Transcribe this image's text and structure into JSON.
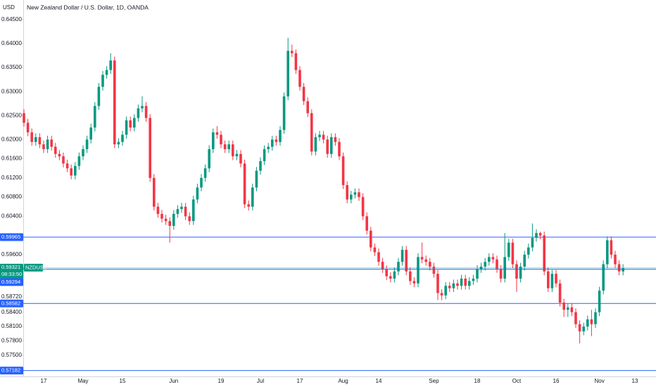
{
  "chart_data": {
    "type": "candlestick",
    "title": "New Zealand Dollar / U.S. Dollar, 1D, OANDA",
    "currency": "USD",
    "up_color": "#089981",
    "down_color": "#f23645",
    "ylim": [
      0.5706,
      0.6491
    ],
    "yticks": [
      {
        "value": 0.645,
        "label": "0.64500"
      },
      {
        "value": 0.64,
        "label": "0.64000"
      },
      {
        "value": 0.635,
        "label": "0.63500"
      },
      {
        "value": 0.63,
        "label": "0.63000"
      },
      {
        "value": 0.625,
        "label": "0.62500"
      },
      {
        "value": 0.62,
        "label": "0.62000"
      },
      {
        "value": 0.616,
        "label": "0.61600"
      },
      {
        "value": 0.612,
        "label": "0.61200"
      },
      {
        "value": 0.608,
        "label": "0.60800"
      },
      {
        "value": 0.604,
        "label": "0.60400"
      },
      {
        "value": 0.596,
        "label": "0.59600"
      },
      {
        "value": 0.5872,
        "label": "0.58720"
      },
      {
        "value": 0.584,
        "label": "0.58400"
      },
      {
        "value": 0.581,
        "label": "0.58100"
      },
      {
        "value": 0.578,
        "label": "0.57800"
      },
      {
        "value": 0.575,
        "label": "0.57500"
      }
    ],
    "categories": [
      null,
      null,
      null,
      null,
      null,
      "17",
      null,
      null,
      null,
      null,
      null,
      null,
      null,
      null,
      null,
      "May",
      null,
      null,
      null,
      null,
      null,
      null,
      null,
      null,
      null,
      "15",
      null,
      null,
      null,
      null,
      null,
      null,
      null,
      null,
      null,
      null,
      null,
      null,
      "Jun",
      null,
      null,
      null,
      null,
      null,
      null,
      null,
      null,
      null,
      null,
      null,
      "19",
      null,
      null,
      null,
      null,
      null,
      null,
      null,
      null,
      null,
      "Jul",
      null,
      null,
      null,
      null,
      null,
      null,
      null,
      null,
      null,
      "17",
      null,
      null,
      null,
      null,
      null,
      null,
      null,
      null,
      null,
      null,
      "Aug",
      null,
      null,
      null,
      null,
      null,
      null,
      null,
      null,
      "14",
      null,
      null,
      null,
      null,
      null,
      null,
      null,
      null,
      null,
      null,
      null,
      null,
      null,
      "Sep",
      null,
      null,
      null,
      null,
      null,
      null,
      null,
      null,
      null,
      null,
      "18",
      null,
      null,
      null,
      null,
      null,
      null,
      null,
      null,
      null,
      "Oct",
      null,
      null,
      null,
      null,
      null,
      null,
      null,
      null,
      null,
      "16",
      null,
      null,
      null,
      null,
      null,
      null,
      null,
      null,
      null,
      null,
      "Nov",
      null,
      null,
      null,
      null,
      null,
      null,
      null,
      null,
      "13"
    ],
    "open": [
      0.6255,
      0.6235,
      0.6215,
      0.6195,
      0.6205,
      0.619,
      0.618,
      0.62,
      0.6185,
      0.617,
      0.6165,
      0.615,
      0.614,
      0.6125,
      0.6145,
      0.6165,
      0.618,
      0.62,
      0.6225,
      0.627,
      0.631,
      0.6335,
      0.6345,
      0.6365,
      0.619,
      0.6195,
      0.621,
      0.624,
      0.6225,
      0.6245,
      0.6265,
      0.627,
      0.6245,
      0.612,
      0.606,
      0.6045,
      0.6035,
      0.603,
      0.602,
      0.6045,
      0.6055,
      0.606,
      0.604,
      0.603,
      0.6075,
      0.61,
      0.612,
      0.614,
      0.618,
      0.6215,
      0.621,
      0.619,
      0.618,
      0.619,
      0.6165,
      0.617,
      0.615,
      0.6065,
      0.606,
      0.61,
      0.6135,
      0.6155,
      0.618,
      0.6185,
      0.62,
      0.6195,
      0.622,
      0.629,
      0.6385,
      0.638,
      0.6345,
      0.631,
      0.628,
      0.6255,
      0.6175,
      0.6205,
      0.621,
      0.62,
      0.617,
      0.6205,
      0.6195,
      0.6165,
      0.6105,
      0.6075,
      0.6085,
      0.609,
      0.608,
      0.604,
      0.601,
      0.5975,
      0.5965,
      0.5945,
      0.593,
      0.5915,
      0.591,
      0.5925,
      0.5945,
      0.597,
      0.5925,
      0.5905,
      0.59,
      0.5955,
      0.595,
      0.5945,
      0.5935,
      0.592,
      0.588,
      0.5875,
      0.5895,
      0.589,
      0.59,
      0.5895,
      0.591,
      0.5895,
      0.5905,
      0.591,
      0.593,
      0.5935,
      0.5945,
      0.5955,
      0.595,
      0.593,
      0.591,
      0.5955,
      0.5985,
      0.594,
      0.591,
      0.5935,
      0.596,
      0.5975,
      0.5995,
      0.6005,
      0.6,
      0.5925,
      0.589,
      0.592,
      0.59,
      0.586,
      0.5845,
      0.585,
      0.584,
      0.5815,
      0.58,
      0.581,
      0.5825,
      0.5815,
      0.584,
      0.5885,
      0.594,
      0.599,
      0.596,
      0.594,
      0.5925,
      null,
      null,
      null
    ],
    "high": [
      0.6263,
      0.6243,
      0.6223,
      0.6213,
      0.6213,
      0.6198,
      0.6208,
      0.6208,
      0.6193,
      0.6178,
      0.6173,
      0.6158,
      0.6148,
      0.6153,
      0.6173,
      0.6188,
      0.6208,
      0.6233,
      0.6278,
      0.6318,
      0.6343,
      0.6353,
      0.638,
      0.6373,
      0.6203,
      0.6218,
      0.6248,
      0.6248,
      0.6253,
      0.6273,
      0.629,
      0.6278,
      0.6253,
      0.6128,
      0.6068,
      0.6053,
      0.6043,
      0.6038,
      0.6053,
      0.6063,
      0.6068,
      0.6068,
      0.6048,
      0.6083,
      0.6108,
      0.6128,
      0.6148,
      0.6188,
      0.6223,
      0.6228,
      0.6218,
      0.6198,
      0.6198,
      0.6198,
      0.6178,
      0.6178,
      0.6158,
      0.6073,
      0.6108,
      0.6143,
      0.6163,
      0.6188,
      0.6193,
      0.6208,
      0.6208,
      0.6228,
      0.6298,
      0.6412,
      0.6398,
      0.6388,
      0.6353,
      0.6318,
      0.6288,
      0.6263,
      0.6213,
      0.6218,
      0.6218,
      0.6208,
      0.6213,
      0.6213,
      0.6203,
      0.6173,
      0.6113,
      0.6093,
      0.6098,
      0.6098,
      0.6088,
      0.6048,
      0.6018,
      0.5983,
      0.5973,
      0.5953,
      0.5938,
      0.5923,
      0.5933,
      0.5953,
      0.5978,
      0.5978,
      0.5933,
      0.5913,
      0.5963,
      0.5985,
      0.5958,
      0.5953,
      0.5943,
      0.5928,
      0.5888,
      0.5903,
      0.5903,
      0.5908,
      0.5908,
      0.5918,
      0.5918,
      0.5913,
      0.5918,
      0.5938,
      0.5943,
      0.5953,
      0.5963,
      0.5963,
      0.5958,
      0.5938,
      0.6005,
      0.5993,
      0.5993,
      0.5948,
      0.5943,
      0.5968,
      0.5983,
      0.6025,
      0.6013,
      0.6008,
      0.6008,
      0.5933,
      0.5928,
      0.5928,
      0.5908,
      0.5868,
      0.5858,
      0.5858,
      0.5848,
      0.5823,
      0.5818,
      0.5833,
      0.5845,
      0.5848,
      0.5893,
      0.5948,
      0.5998,
      0.5998,
      0.5968,
      0.5948,
      0.594,
      null,
      null,
      null
    ],
    "low": [
      0.6227,
      0.6207,
      0.6187,
      0.6187,
      0.6182,
      0.6172,
      0.6172,
      0.6177,
      0.6162,
      0.6157,
      0.6142,
      0.6132,
      0.6117,
      0.6117,
      0.6137,
      0.6157,
      0.6172,
      0.6192,
      0.6217,
      0.6262,
      0.6302,
      0.6327,
      0.6337,
      0.6182,
      0.6182,
      0.6187,
      0.6202,
      0.6217,
      0.6217,
      0.6237,
      0.6257,
      0.6237,
      0.6112,
      0.6052,
      0.6037,
      0.6027,
      0.6022,
      0.5985,
      0.6012,
      0.6037,
      0.6047,
      0.6032,
      0.6022,
      0.6022,
      0.6067,
      0.6092,
      0.6112,
      0.6132,
      0.6172,
      0.6202,
      0.6182,
      0.6172,
      0.6172,
      0.6157,
      0.6157,
      0.6142,
      0.6057,
      0.6052,
      0.6052,
      0.6092,
      0.6127,
      0.6147,
      0.6172,
      0.6177,
      0.6187,
      0.6187,
      0.6212,
      0.6282,
      0.6372,
      0.6337,
      0.6302,
      0.6272,
      0.6247,
      0.6167,
      0.6167,
      0.6197,
      0.6192,
      0.6162,
      0.6162,
      0.6187,
      0.6157,
      0.6097,
      0.6067,
      0.6067,
      0.6077,
      0.6072,
      0.6032,
      0.6002,
      0.5967,
      0.5957,
      0.5937,
      0.5922,
      0.5907,
      0.5902,
      0.5902,
      0.5917,
      0.5937,
      0.5917,
      0.5897,
      0.5892,
      0.5892,
      0.5942,
      0.5937,
      0.5927,
      0.5912,
      0.5865,
      0.5865,
      0.5867,
      0.5882,
      0.5882,
      0.5887,
      0.5887,
      0.5887,
      0.5887,
      0.5897,
      0.5902,
      0.5922,
      0.5927,
      0.5937,
      0.5942,
      0.5922,
      0.5902,
      0.5902,
      0.5947,
      0.5932,
      0.5882,
      0.5902,
      0.5927,
      0.5952,
      0.5967,
      0.5987,
      0.5992,
      0.5917,
      0.5882,
      0.5882,
      0.5892,
      0.5852,
      0.583,
      0.583,
      0.5832,
      0.5807,
      0.5775,
      0.5792,
      0.5802,
      0.579,
      0.5807,
      0.5832,
      0.5877,
      0.5932,
      0.5952,
      0.5932,
      0.5917,
      0.5917,
      null,
      null,
      null
    ],
    "close": [
      0.6235,
      0.6215,
      0.6195,
      0.6205,
      0.619,
      0.618,
      0.62,
      0.6185,
      0.617,
      0.6165,
      0.615,
      0.614,
      0.6125,
      0.6145,
      0.6165,
      0.618,
      0.62,
      0.6225,
      0.627,
      0.631,
      0.6335,
      0.6345,
      0.6365,
      0.619,
      0.6195,
      0.621,
      0.624,
      0.6225,
      0.6245,
      0.6265,
      0.627,
      0.6245,
      0.612,
      0.606,
      0.6045,
      0.6035,
      0.603,
      0.602,
      0.6045,
      0.6055,
      0.606,
      0.604,
      0.603,
      0.6075,
      0.61,
      0.612,
      0.614,
      0.618,
      0.6215,
      0.621,
      0.619,
      0.618,
      0.619,
      0.6165,
      0.617,
      0.615,
      0.6065,
      0.606,
      0.61,
      0.6135,
      0.6155,
      0.618,
      0.6185,
      0.62,
      0.6195,
      0.622,
      0.629,
      0.6385,
      0.638,
      0.6345,
      0.631,
      0.628,
      0.6255,
      0.6175,
      0.6205,
      0.621,
      0.62,
      0.617,
      0.6205,
      0.6195,
      0.6165,
      0.6105,
      0.6075,
      0.6085,
      0.609,
      0.608,
      0.604,
      0.601,
      0.5975,
      0.5965,
      0.5945,
      0.593,
      0.5915,
      0.591,
      0.5925,
      0.5945,
      0.597,
      0.5925,
      0.5905,
      0.59,
      0.5955,
      0.595,
      0.5945,
      0.5935,
      0.592,
      0.588,
      0.5875,
      0.5895,
      0.589,
      0.59,
      0.5895,
      0.591,
      0.5895,
      0.5905,
      0.591,
      0.593,
      0.5935,
      0.5945,
      0.5955,
      0.595,
      0.593,
      0.591,
      0.5955,
      0.5985,
      0.594,
      0.591,
      0.5935,
      0.596,
      0.5975,
      0.5995,
      0.6005,
      0.6,
      0.5925,
      0.589,
      0.592,
      0.59,
      0.586,
      0.5845,
      0.585,
      0.584,
      0.5815,
      0.58,
      0.581,
      0.5825,
      0.5815,
      0.584,
      0.5885,
      0.594,
      0.599,
      0.596,
      0.594,
      0.5925,
      0.5932,
      null,
      null,
      null
    ],
    "horizontal_lines": [
      {
        "value": 0.59965,
        "color": "#2962ff"
      },
      {
        "value": 0.58582,
        "color": "#2962ff"
      },
      {
        "value": 0.57182,
        "color": "#2962ff"
      }
    ],
    "last_price": {
      "symbol": "NZDUSD",
      "value": 0.59321,
      "countdown": "08:33:50",
      "color": "#089981"
    },
    "bid_price": {
      "value": 0.59294,
      "color": "#2962ff"
    }
  }
}
